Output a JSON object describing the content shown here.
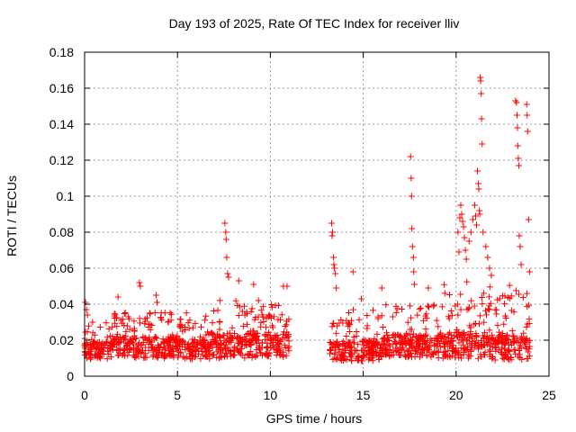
{
  "chart_data": {
    "type": "scatter",
    "title": "Day 193 of 2025, Rate Of TEC Index for receiver lliv",
    "xlabel": "GPS time / hours",
    "ylabel": "ROTI / TECUs",
    "xlim": [
      0,
      25
    ],
    "ylim": [
      0,
      0.18
    ],
    "x_ticks": [
      0,
      5,
      10,
      15,
      20,
      25
    ],
    "x_tick_labels": [
      "0",
      "5",
      "10",
      "15",
      "20",
      "25"
    ],
    "y_ticks": [
      0,
      0.02,
      0.04,
      0.06,
      0.08,
      0.1,
      0.12,
      0.14,
      0.16,
      0.18
    ],
    "y_tick_labels": [
      "0",
      "0.02",
      "0.04",
      "0.06",
      "0.08",
      "0.1",
      "0.12",
      "0.14",
      "0.16",
      "0.18"
    ],
    "grid": true,
    "marker": "+",
    "colors": {
      "points": "#ff0000",
      "grid": "#999999",
      "axis": "#000000"
    },
    "data_gap_hours": [
      11.05,
      13.2
    ],
    "notable_points": [
      [
        0.05,
        0.041
      ],
      [
        0.1,
        0.037
      ],
      [
        0.15,
        0.034
      ],
      [
        1.8,
        0.044
      ],
      [
        2.95,
        0.052
      ],
      [
        3.0,
        0.05
      ],
      [
        3.85,
        0.045
      ],
      [
        3.9,
        0.041
      ],
      [
        7.55,
        0.085
      ],
      [
        7.6,
        0.08
      ],
      [
        7.62,
        0.076
      ],
      [
        7.65,
        0.066
      ],
      [
        7.7,
        0.057
      ],
      [
        7.75,
        0.055
      ],
      [
        8.3,
        0.053
      ],
      [
        9.1,
        0.051
      ],
      [
        10.7,
        0.05
      ],
      [
        10.9,
        0.05
      ],
      [
        13.3,
        0.085
      ],
      [
        13.35,
        0.08
      ],
      [
        13.32,
        0.078
      ],
      [
        13.4,
        0.066
      ],
      [
        13.42,
        0.062
      ],
      [
        13.45,
        0.06
      ],
      [
        13.5,
        0.057
      ],
      [
        13.55,
        0.049
      ],
      [
        14.45,
        0.058
      ],
      [
        14.9,
        0.043
      ],
      [
        16.0,
        0.049
      ],
      [
        17.55,
        0.122
      ],
      [
        17.58,
        0.11
      ],
      [
        17.6,
        0.1
      ],
      [
        17.62,
        0.082
      ],
      [
        17.65,
        0.072
      ],
      [
        17.7,
        0.066
      ],
      [
        17.72,
        0.058
      ],
      [
        17.75,
        0.051
      ],
      [
        18.5,
        0.049
      ],
      [
        20.1,
        0.08
      ],
      [
        20.15,
        0.069
      ],
      [
        20.2,
        0.088
      ],
      [
        20.25,
        0.095
      ],
      [
        20.3,
        0.09
      ],
      [
        20.35,
        0.086
      ],
      [
        20.4,
        0.083
      ],
      [
        20.45,
        0.077
      ],
      [
        20.5,
        0.07
      ],
      [
        20.55,
        0.065
      ],
      [
        20.7,
        0.075
      ],
      [
        20.8,
        0.08
      ],
      [
        20.9,
        0.087
      ],
      [
        21.0,
        0.095
      ],
      [
        21.05,
        0.089
      ],
      [
        21.1,
        0.084
      ],
      [
        21.15,
        0.114
      ],
      [
        21.2,
        0.107
      ],
      [
        21.22,
        0.104
      ],
      [
        21.25,
        0.092
      ],
      [
        21.27,
        0.09
      ],
      [
        21.3,
        0.166
      ],
      [
        21.32,
        0.164
      ],
      [
        21.35,
        0.157
      ],
      [
        21.37,
        0.143
      ],
      [
        21.4,
        0.129
      ],
      [
        21.45,
        0.08
      ],
      [
        21.6,
        0.072
      ],
      [
        21.7,
        0.066
      ],
      [
        21.8,
        0.06
      ],
      [
        21.9,
        0.056
      ],
      [
        23.2,
        0.153
      ],
      [
        23.25,
        0.152
      ],
      [
        23.28,
        0.145
      ],
      [
        23.3,
        0.138
      ],
      [
        23.32,
        0.128
      ],
      [
        23.35,
        0.121
      ],
      [
        23.38,
        0.117
      ],
      [
        23.4,
        0.078
      ],
      [
        23.45,
        0.072
      ],
      [
        23.5,
        0.062
      ],
      [
        23.8,
        0.151
      ],
      [
        23.82,
        0.145
      ],
      [
        23.85,
        0.136
      ],
      [
        23.9,
        0.087
      ],
      [
        23.95,
        0.058
      ]
    ],
    "activity_bands": [
      {
        "x0": 0.0,
        "x1": 1.5,
        "base": 0.014,
        "spread": 0.01,
        "peak": 0.028
      },
      {
        "x0": 1.5,
        "x1": 5.0,
        "base": 0.016,
        "spread": 0.012,
        "peak": 0.036
      },
      {
        "x0": 5.0,
        "x1": 6.8,
        "base": 0.015,
        "spread": 0.011,
        "peak": 0.032
      },
      {
        "x0": 6.8,
        "x1": 9.5,
        "base": 0.017,
        "spread": 0.014,
        "peak": 0.04
      },
      {
        "x0": 9.5,
        "x1": 11.05,
        "base": 0.017,
        "spread": 0.013,
        "peak": 0.04
      },
      {
        "x0": 13.2,
        "x1": 16.0,
        "base": 0.014,
        "spread": 0.011,
        "peak": 0.034
      },
      {
        "x0": 16.0,
        "x1": 19.0,
        "base": 0.017,
        "spread": 0.013,
        "peak": 0.04
      },
      {
        "x0": 19.0,
        "x1": 22.0,
        "base": 0.017,
        "spread": 0.015,
        "peak": 0.048
      },
      {
        "x0": 22.0,
        "x1": 24.0,
        "base": 0.016,
        "spread": 0.014,
        "peak": 0.046
      }
    ]
  }
}
